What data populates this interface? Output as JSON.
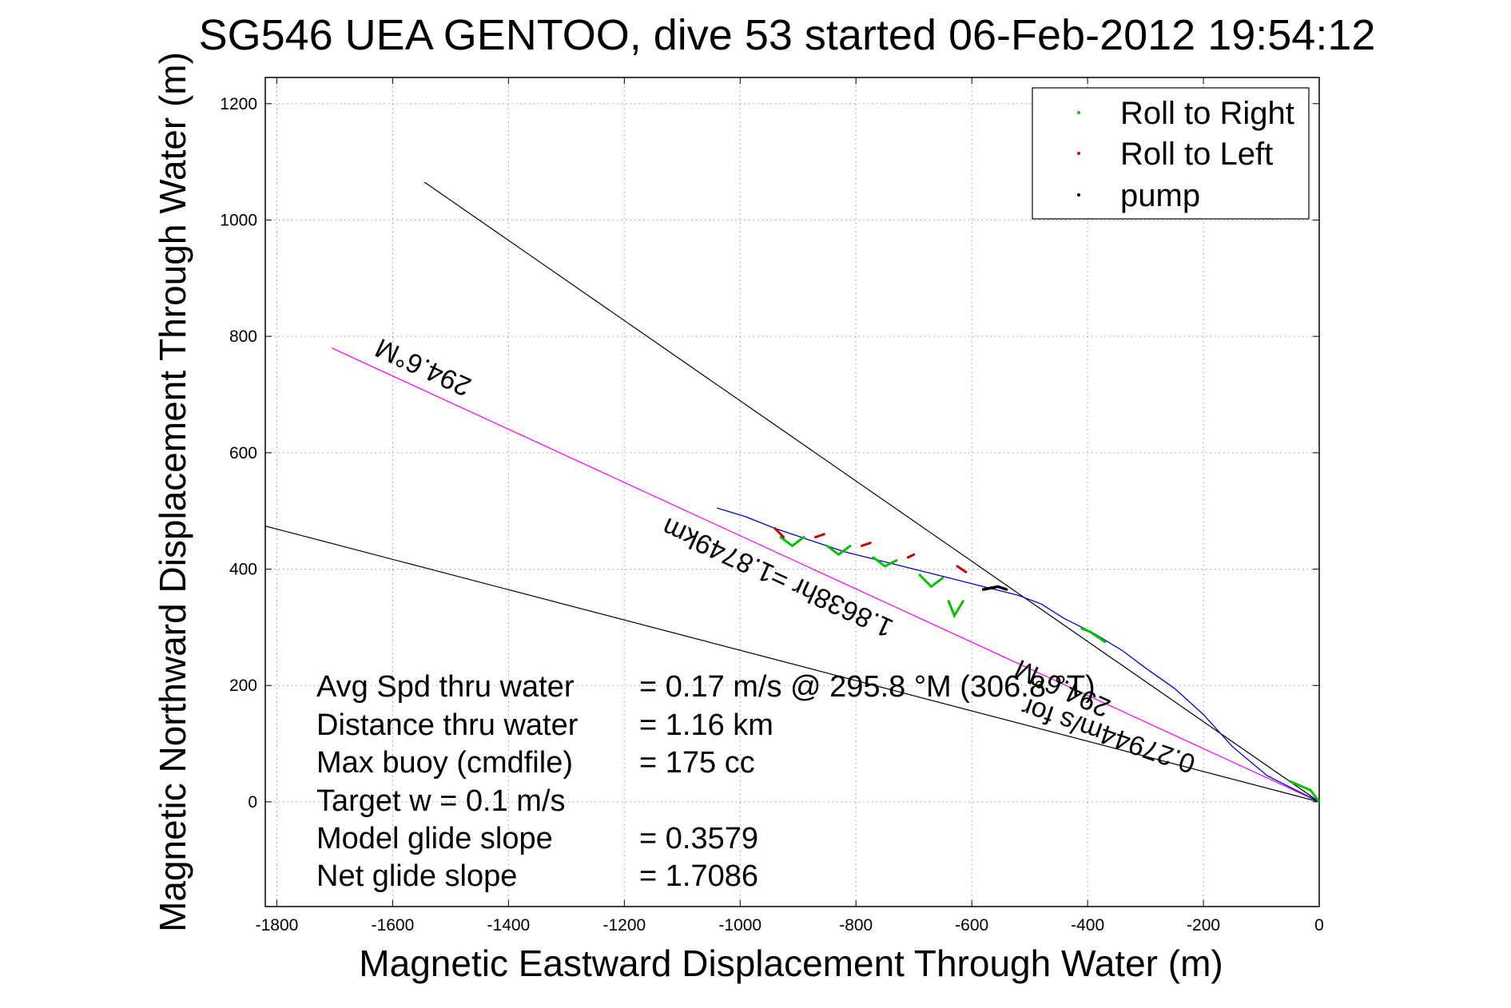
{
  "chart_data": {
    "type": "line",
    "title": "SG546 UEA GENTOO, dive 53 started 06-Feb-2012 19:54:12",
    "xlabel": "Magnetic Eastward Displacement Through Water (m)",
    "ylabel": "Magnetic Northward Displacement Through Water (m)",
    "xlim": [
      -1820,
      0
    ],
    "ylim": [
      -180,
      1245
    ],
    "xticks": [
      -1800,
      -1600,
      -1400,
      -1200,
      -1000,
      -800,
      -600,
      -400,
      -200,
      0
    ],
    "yticks": [
      0,
      200,
      400,
      600,
      800,
      1000,
      1200
    ],
    "grid": true,
    "legend": {
      "placement": "top-right",
      "entries": [
        {
          "label": "Roll to Right",
          "color": "#00c000"
        },
        {
          "label": "Roll to Left",
          "color": "#c00000"
        },
        {
          "label": "pump",
          "color": "#000000"
        }
      ]
    },
    "reference_lines": [
      {
        "color": "#000000",
        "points": [
          [
            -1545,
            1065
          ],
          [
            0,
            0
          ]
        ]
      },
      {
        "color": "#000000",
        "points": [
          [
            -1820,
            474
          ],
          [
            0,
            0
          ]
        ]
      },
      {
        "color": "#ff00ff",
        "points": [
          [
            -1705,
            780
          ],
          [
            0,
            0
          ]
        ]
      }
    ],
    "track": {
      "color": "#0000cc",
      "points": [
        [
          0,
          0
        ],
        [
          -30,
          15
        ],
        [
          -90,
          45
        ],
        [
          -150,
          95
        ],
        [
          -200,
          150
        ],
        [
          -250,
          195
        ],
        [
          -300,
          230
        ],
        [
          -340,
          260
        ],
        [
          -390,
          290
        ],
        [
          -440,
          315
        ],
        [
          -480,
          340
        ],
        [
          -520,
          355
        ],
        [
          -560,
          365
        ],
        [
          -600,
          375
        ],
        [
          -640,
          385
        ],
        [
          -700,
          400
        ],
        [
          -760,
          415
        ],
        [
          -820,
          430
        ],
        [
          -880,
          450
        ],
        [
          -940,
          470
        ],
        [
          -990,
          490
        ],
        [
          -1040,
          505
        ]
      ]
    },
    "roll_right_segments": [
      [
        [
          0,
          0
        ],
        [
          -15,
          20
        ],
        [
          -50,
          35
        ]
      ],
      [
        [
          -370,
          275
        ],
        [
          -395,
          292
        ],
        [
          -410,
          298
        ]
      ],
      [
        [
          -930,
          455
        ],
        [
          -910,
          440
        ],
        [
          -890,
          455
        ]
      ],
      [
        [
          -850,
          440
        ],
        [
          -830,
          425
        ],
        [
          -810,
          440
        ]
      ],
      [
        [
          -770,
          420
        ],
        [
          -750,
          405
        ],
        [
          -730,
          415
        ]
      ],
      [
        [
          -690,
          390
        ],
        [
          -670,
          370
        ],
        [
          -650,
          385
        ]
      ],
      [
        [
          -640,
          345
        ],
        [
          -630,
          320
        ],
        [
          -615,
          345
        ]
      ]
    ],
    "roll_left_segments": [
      [
        [
          -940,
          470
        ],
        [
          -925,
          455
        ]
      ],
      [
        [
          -870,
          455
        ],
        [
          -855,
          460
        ]
      ],
      [
        [
          -790,
          440
        ],
        [
          -775,
          445
        ]
      ],
      [
        [
          -710,
          420
        ],
        [
          -700,
          425
        ]
      ],
      [
        [
          -625,
          405
        ],
        [
          -610,
          395
        ]
      ]
    ],
    "pump_segments": [
      [
        [
          -580,
          365
        ],
        [
          -555,
          370
        ],
        [
          -540,
          365
        ]
      ]
    ],
    "annotations": [
      {
        "key": "avg_spd",
        "label": "Avg Spd thru water",
        "value": "=  0.17 m/s @ 295.8 °M (306.8 °T)"
      },
      {
        "key": "distance",
        "label": "Distance thru water",
        "value": "=  1.16 km"
      },
      {
        "key": "max_buoy",
        "label": "Max buoy (cmdfile)",
        "value": "= 175 cc"
      },
      {
        "key": "target_w",
        "label": "Target w    = 0.1 m/s",
        "value": ""
      },
      {
        "key": "model_glide",
        "label": "Model glide slope",
        "value": "= 0.3579"
      },
      {
        "key": "net_glide",
        "label": "Net glide slope",
        "value": "= 1.7086"
      }
    ],
    "rotated_labels": [
      {
        "key": "heading_upper",
        "text": "294.6°M"
      },
      {
        "key": "heading_lower",
        "text": "294.6°M"
      },
      {
        "key": "time_distance",
        "text": "1.8638hr =1.8749km"
      },
      {
        "key": "speed",
        "text": "0.27944m/s for"
      }
    ]
  }
}
